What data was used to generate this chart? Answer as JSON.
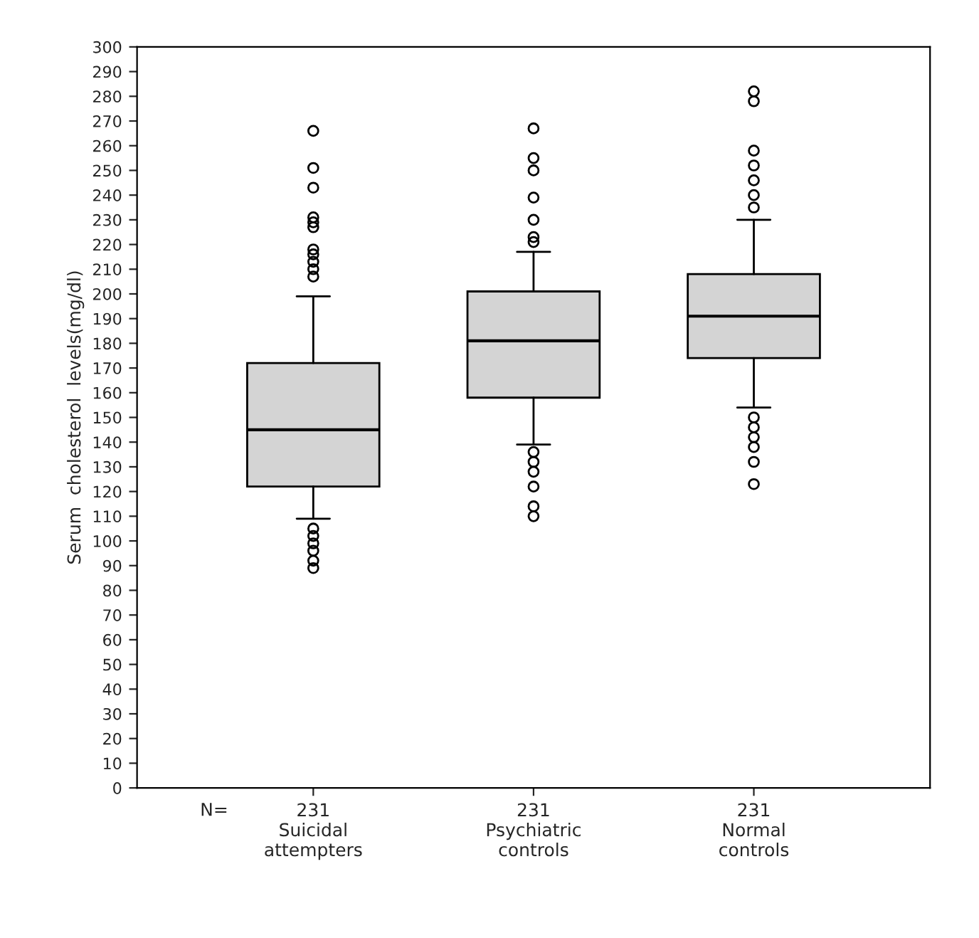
{
  "chart_data": {
    "type": "box",
    "ylabel": "Serum  cholesterol  levels(mg/dl)",
    "categories": [
      "231\nSuicidal\nattempters",
      "231\nPsychiatric\ncontrols",
      "231\nNormal\ncontrols"
    ],
    "series": [
      {
        "color": "#d4d4d4",
        "boxes": [
          {
            "low": 109,
            "q1": 122,
            "median": 145,
            "q3": 172,
            "high": 199,
            "outliers": [
              266,
              251,
              243,
              231,
              229,
              227,
              218,
              216,
              213,
              210,
              207,
              105,
              102,
              99,
              96,
              92,
              89
            ]
          },
          {
            "low": 139,
            "q1": 158,
            "median": 181,
            "q3": 201,
            "high": 217,
            "outliers": [
              267,
              255,
              250,
              239,
              230,
              223,
              221,
              136,
              132,
              128,
              122,
              114,
              110
            ]
          },
          {
            "low": 154,
            "q1": 174,
            "median": 191,
            "q3": 208,
            "high": 230,
            "outliers": [
              282,
              278,
              258,
              252,
              246,
              240,
              235,
              150,
              146,
              142,
              138,
              132,
              123
            ]
          }
        ]
      }
    ],
    "ylim": [
      0,
      300
    ],
    "yticks": [
      0,
      10,
      20,
      30,
      40,
      50,
      60,
      70,
      80,
      90,
      100,
      110,
      120,
      130,
      140,
      150,
      160,
      170,
      180,
      190,
      200,
      210,
      220,
      230,
      240,
      250,
      260,
      270,
      280,
      290,
      300
    ],
    "annotations": [
      "N="
    ],
    "grid": false
  }
}
